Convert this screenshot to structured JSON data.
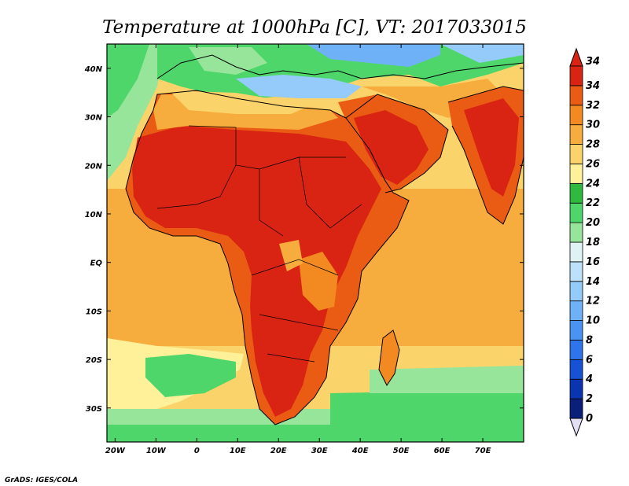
{
  "map": {
    "title": "Temperature at 1000hPa [C], VT: 2017033015",
    "credit": "GrADS: IGES/COLA",
    "extent": {
      "lon_min": -22,
      "lon_max": 80,
      "lat_min": -37,
      "lat_max": 45
    },
    "lon_ticks": [
      {
        "value": -20,
        "label": "20W"
      },
      {
        "value": -10,
        "label": "10W"
      },
      {
        "value": 0,
        "label": "0"
      },
      {
        "value": 10,
        "label": "10E"
      },
      {
        "value": 20,
        "label": "20E"
      },
      {
        "value": 30,
        "label": "30E"
      },
      {
        "value": 40,
        "label": "40E"
      },
      {
        "value": 50,
        "label": "50E"
      },
      {
        "value": 60,
        "label": "60E"
      },
      {
        "value": 70,
        "label": "70E"
      }
    ],
    "lat_ticks": [
      {
        "value": 40,
        "label": "40N"
      },
      {
        "value": 30,
        "label": "30N"
      },
      {
        "value": 20,
        "label": "20N"
      },
      {
        "value": 10,
        "label": "10N"
      },
      {
        "value": 0,
        "label": "EQ"
      },
      {
        "value": -10,
        "label": "10S"
      },
      {
        "value": -20,
        "label": "20S"
      },
      {
        "value": -30,
        "label": "30S"
      }
    ],
    "colorbar": [
      {
        "value": "0",
        "color": "#0a1f7a"
      },
      {
        "value": "2",
        "color": "#0b34b0"
      },
      {
        "value": "4",
        "color": "#1552d6"
      },
      {
        "value": "6",
        "color": "#2e74ea"
      },
      {
        "value": "8",
        "color": "#4b93f2"
      },
      {
        "value": "10",
        "color": "#6fb1f7"
      },
      {
        "value": "12",
        "color": "#94cbfa"
      },
      {
        "value": "14",
        "color": "#bde1fb"
      },
      {
        "value": "16",
        "color": "#dff3f5"
      },
      {
        "value": "18",
        "color": "#97e59a"
      },
      {
        "value": "20",
        "color": "#4ed66a"
      },
      {
        "value": "22",
        "color": "#2fba3f"
      },
      {
        "value": "24",
        "color": "#fff19a"
      },
      {
        "value": "26",
        "color": "#fbd36b"
      },
      {
        "value": "28",
        "color": "#f7ac3e"
      },
      {
        "value": "30",
        "color": "#f28a21"
      },
      {
        "value": "32",
        "color": "#ea5c14"
      },
      {
        "value": "34",
        "color": "#d92413"
      }
    ],
    "colorbar_under": "#e4e0f4",
    "colorbar_over": "#d92413"
  }
}
